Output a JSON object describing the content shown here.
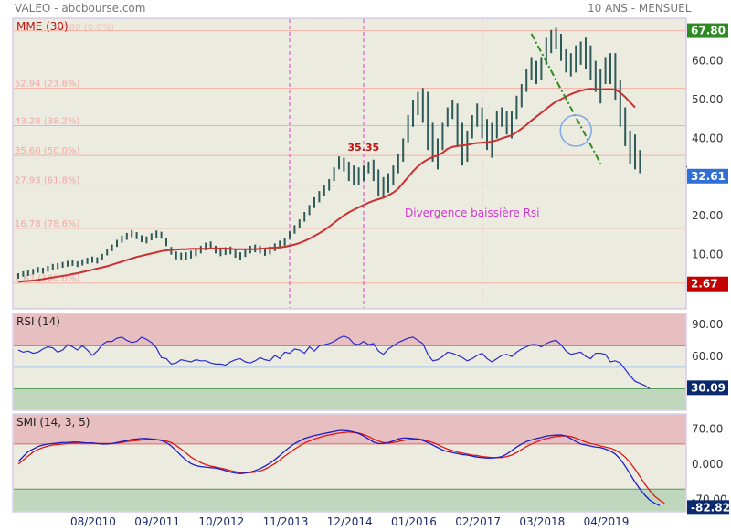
{
  "header": {
    "left_title": "VALEO - abcbourse.com",
    "right_title": "10 ANS - MENSUEL"
  },
  "colors": {
    "panel_bg": "#ebebdf",
    "price_bar": "#2f5a5a",
    "mme_line": "#c83232",
    "rsi_line": "#2a2ad0",
    "smi_main": "#1c1cc8",
    "smi_signal": "#e01818",
    "overbought_zone": "#e8bfc0",
    "oversold_zone": "#bfd8bd",
    "fib_line": "#f5b2a2",
    "fib_label": "#f3a7a7",
    "vline": "#e040c0",
    "trend_line": "#2e8b22",
    "badge_green": "#2e8b22",
    "badge_blue": "#2f6fd6",
    "badge_red": "#c40000",
    "badge_navy": "#0b2a6e"
  },
  "x_axis": {
    "labels": [
      "08/2010",
      "09/2011",
      "10/2012",
      "11/2013",
      "12/2014",
      "01/2016",
      "02/2017",
      "03/2018",
      "04/2019"
    ]
  },
  "chart_data": [
    {
      "type": "ohlc",
      "name": "price",
      "title": "MME (30)",
      "x_start": "2009-05",
      "interval": "month",
      "y_ticks": [
        "60.00",
        "50.00",
        "40.00",
        "30.00",
        "20.00",
        "10.00"
      ],
      "ylim": [
        -4,
        71
      ],
      "grid": true,
      "close": [
        4.5,
        5.0,
        5.2,
        5.6,
        6.0,
        5.8,
        6.3,
        6.8,
        7.0,
        7.3,
        7.6,
        7.8,
        7.5,
        7.9,
        8.3,
        8.6,
        8.4,
        9.2,
        10.5,
        11.6,
        12.8,
        13.9,
        14.6,
        15.3,
        14.8,
        14.0,
        13.7,
        14.5,
        15.2,
        14.9,
        13.2,
        11.0,
        9.8,
        9.5,
        9.6,
        10.0,
        10.6,
        11.3,
        12.1,
        12.4,
        11.3,
        10.6,
        10.9,
        11.1,
        10.2,
        9.6,
        10.4,
        11.3,
        11.6,
        11.3,
        10.7,
        11.1,
        11.9,
        12.6,
        13.3,
        15.0,
        16.4,
        17.9,
        19.7,
        21.5,
        23.4,
        24.9,
        26.4,
        28.0,
        30.5,
        33.2,
        34.6,
        31.5,
        30.0,
        29.5,
        31.0,
        32.5,
        33.0,
        29.0,
        26.5,
        28.0,
        30.0,
        33.0,
        36.0,
        42.0,
        45.0,
        48.0,
        51.0,
        44.0,
        38.0,
        34.0,
        40.0,
        45.0,
        48.0,
        46.0,
        38.0,
        36.0,
        42.0,
        46.0,
        44.0,
        40.0,
        38.0,
        44.0,
        45.0,
        44.0,
        42.0,
        48.0,
        50.0,
        55.0,
        58.0,
        56.0,
        58.0,
        62.0,
        65.0,
        67.0,
        63.0,
        60.0,
        58.0,
        60.0,
        62.0,
        62.0,
        58.0,
        55.0,
        52.0,
        58.0,
        60.0,
        55.0,
        48.0,
        42.0,
        37.0,
        36.0,
        32.6
      ],
      "high": [
        5.2,
        5.7,
        5.9,
        6.3,
        6.8,
        6.6,
        7.1,
        7.6,
        7.8,
        8.1,
        8.4,
        8.6,
        8.3,
        8.8,
        9.2,
        9.5,
        9.3,
        10.2,
        11.5,
        12.6,
        13.8,
        14.9,
        15.6,
        16.3,
        15.8,
        15.0,
        14.7,
        15.5,
        16.2,
        15.9,
        14.2,
        12.0,
        10.8,
        10.5,
        10.6,
        11.0,
        11.6,
        12.3,
        13.1,
        13.4,
        12.3,
        11.6,
        11.9,
        12.1,
        11.2,
        10.6,
        11.4,
        12.3,
        12.6,
        12.3,
        11.7,
        12.1,
        12.9,
        13.6,
        14.3,
        16.0,
        17.6,
        19.1,
        21.0,
        22.8,
        24.8,
        26.4,
        27.8,
        29.5,
        32.5,
        35.35,
        35.0,
        34.0,
        33.0,
        32.5,
        33.0,
        34.0,
        34.5,
        32.0,
        30.0,
        31.0,
        33.0,
        36.0,
        40.0,
        46.0,
        50.0,
        52.0,
        53.0,
        52.0,
        44.0,
        40.0,
        44.0,
        48.0,
        50.0,
        49.0,
        44.0,
        42.0,
        46.0,
        49.0,
        48.0,
        45.0,
        44.0,
        47.0,
        48.0,
        47.0,
        47.0,
        51.0,
        54.0,
        58.0,
        61.0,
        60.0,
        61.0,
        66.0,
        68.0,
        68.5,
        67.0,
        63.0,
        62.0,
        64.0,
        65.0,
        66.0,
        64.0,
        60.0,
        58.0,
        61.0,
        62.0,
        62.0,
        55.0,
        48.0,
        42.0,
        41.0,
        37.0
      ],
      "low": [
        3.8,
        4.3,
        4.5,
        4.9,
        5.3,
        5.1,
        5.6,
        6.1,
        6.3,
        6.6,
        6.9,
        7.1,
        6.8,
        7.2,
        7.6,
        7.9,
        7.7,
        8.5,
        9.8,
        10.9,
        12.0,
        13.1,
        13.8,
        14.5,
        14.0,
        13.2,
        12.9,
        13.7,
        14.4,
        14.1,
        12.2,
        10.0,
        8.8,
        8.5,
        8.6,
        9.0,
        9.6,
        10.3,
        11.1,
        11.4,
        10.3,
        9.6,
        9.9,
        10.1,
        9.2,
        8.6,
        9.4,
        10.3,
        10.6,
        10.3,
        9.7,
        10.1,
        10.9,
        11.6,
        12.3,
        14.0,
        15.4,
        16.8,
        18.5,
        20.2,
        22.0,
        23.5,
        25.0,
        26.5,
        29.0,
        32.0,
        31.5,
        29.0,
        28.0,
        28.0,
        29.0,
        31.0,
        29.0,
        25.0,
        24.5,
        26.0,
        28.0,
        31.0,
        34.0,
        39.0,
        43.0,
        46.0,
        44.0,
        37.0,
        34.0,
        32.0,
        37.0,
        43.0,
        45.0,
        38.0,
        33.0,
        34.0,
        40.0,
        43.0,
        40.0,
        37.0,
        35.0,
        40.0,
        43.0,
        41.0,
        40.0,
        45.0,
        48.0,
        52.0,
        55.0,
        54.0,
        55.0,
        59.0,
        62.0,
        63.0,
        60.0,
        57.0,
        56.0,
        57.0,
        59.0,
        58.0,
        55.0,
        52.0,
        49.0,
        54.0,
        54.0,
        50.0,
        43.0,
        38.0,
        33.5,
        32.0,
        31.0
      ],
      "mme": [
        3.0,
        3.1,
        3.2,
        3.3,
        3.5,
        3.7,
        3.9,
        4.1,
        4.3,
        4.5,
        4.7,
        5.0,
        5.2,
        5.5,
        5.8,
        6.1,
        6.4,
        6.7,
        7.0,
        7.4,
        7.8,
        8.2,
        8.6,
        9.0,
        9.4,
        9.7,
        10.0,
        10.3,
        10.6,
        10.9,
        11.1,
        11.2,
        11.3,
        11.4,
        11.4,
        11.5,
        11.5,
        11.5,
        11.5,
        11.6,
        11.6,
        11.6,
        11.6,
        11.5,
        11.4,
        11.4,
        11.4,
        11.4,
        11.4,
        11.5,
        11.6,
        11.7,
        11.8,
        11.9,
        12.0,
        12.3,
        12.6,
        13.0,
        13.5,
        14.1,
        14.8,
        15.5,
        16.3,
        17.2,
        18.2,
        19.2,
        20.1,
        20.9,
        21.6,
        22.2,
        22.8,
        23.4,
        23.9,
        24.3,
        24.7,
        25.3,
        26.0,
        27.0,
        28.5,
        30.0,
        31.5,
        32.8,
        33.8,
        34.6,
        35.2,
        35.6,
        36.3,
        37.3,
        37.8,
        38.0,
        38.2,
        38.3,
        38.6,
        38.8,
        38.9,
        39.0,
        39.2,
        39.5,
        40.0,
        40.4,
        40.8,
        41.6,
        42.5,
        43.5,
        44.6,
        45.6,
        46.6,
        47.6,
        48.6,
        49.5,
        50.1,
        50.8,
        51.4,
        51.9,
        52.3,
        52.6,
        52.8,
        52.7,
        52.6,
        52.7,
        52.7,
        52.6,
        51.8,
        50.7,
        49.3,
        48.0
      ],
      "fibonacci": [
        {
          "value": 67.8,
          "label": "67.80 (0.0%)"
        },
        {
          "value": 52.94,
          "label": "52.94 (23.6%)"
        },
        {
          "value": 43.28,
          "label": "43.28 (38.2%)"
        },
        {
          "value": 35.6,
          "label": "35.60 (50.0%)"
        },
        {
          "value": 27.93,
          "label": "27.93 (61.8%)"
        },
        {
          "value": 16.78,
          "label": "16.78 (78.6%)"
        },
        {
          "value": 2.67,
          "label": "2.67 (100.0%)"
        }
      ],
      "annotations": {
        "peak_label": "35.35",
        "divergence_text": "Divergence baissière Rsi",
        "vertical_lines_at": [
          "2013-12",
          "2015-03",
          "2017-03"
        ],
        "trendline_from": {
          "date": "2018-01",
          "value": 67.0
        },
        "trendline_to": {
          "date": "2019-03",
          "value": 33.5
        },
        "circle_at": {
          "date": "2018-10",
          "value": 42.0
        }
      },
      "badges": {
        "top": "67.80",
        "current": "32.61",
        "bottom": "2.67"
      }
    },
    {
      "type": "line",
      "name": "rsi",
      "title": "RSI (14)",
      "ylim": [
        10,
        100
      ],
      "y_ticks": [
        "90.00",
        "60.00"
      ],
      "zones": {
        "overbought": 70,
        "oversold": 30
      },
      "reference_line": 50,
      "values": [
        66,
        64,
        65,
        63,
        64,
        67,
        69,
        68,
        64,
        66,
        71,
        69,
        66,
        70,
        66,
        61,
        65,
        71,
        74,
        74,
        77,
        78,
        75,
        73,
        74,
        78,
        76,
        73,
        68,
        59,
        58,
        53,
        54,
        57,
        56,
        55,
        57,
        56,
        56,
        54,
        53,
        53,
        52,
        55,
        57,
        58,
        55,
        54,
        56,
        59,
        57,
        56,
        61,
        58,
        64,
        63,
        67,
        66,
        63,
        69,
        65,
        70,
        71,
        72,
        74,
        77,
        79,
        77,
        72,
        71,
        74,
        71,
        72,
        65,
        62,
        67,
        70,
        73,
        75,
        77,
        78,
        75,
        72,
        62,
        56,
        57,
        60,
        64,
        63,
        61,
        59,
        56,
        58,
        61,
        63,
        58,
        55,
        58,
        61,
        62,
        60,
        64,
        67,
        69,
        71,
        71,
        69,
        72,
        74,
        75,
        71,
        65,
        62,
        63,
        64,
        60,
        58,
        63,
        63,
        62,
        55,
        56,
        54,
        48,
        42,
        37,
        35,
        33,
        30
      ],
      "badge": "30.09"
    },
    {
      "type": "line",
      "name": "smi",
      "title": "SMI (14, 3, 5)",
      "ylim": [
        -95,
        100
      ],
      "y_ticks": [
        "70.00",
        "0.000",
        "-70.00"
      ],
      "zones": {
        "overbought": 40,
        "oversold": -50
      },
      "series": [
        {
          "values": [
            5,
            15,
            25,
            30,
            35,
            38,
            40,
            41,
            42,
            43,
            43,
            44,
            44,
            43,
            42,
            42,
            41,
            40,
            40,
            41,
            43,
            45,
            47,
            49,
            50,
            51,
            51,
            50,
            49,
            47,
            43,
            36,
            27,
            17,
            8,
            1,
            -3,
            -5,
            -6,
            -7,
            -8,
            -10,
            -13,
            -16,
            -18,
            -19,
            -18,
            -16,
            -13,
            -9,
            -4,
            2,
            9,
            17,
            26,
            34,
            41,
            46,
            51,
            54,
            57,
            59,
            61,
            63,
            65,
            67,
            67,
            66,
            64,
            61,
            56,
            50,
            44,
            41,
            41,
            43,
            46,
            50,
            52,
            52,
            51,
            50,
            47,
            43,
            38,
            33,
            28,
            25,
            23,
            21,
            19,
            18,
            16,
            14,
            13,
            12,
            12,
            13,
            15,
            20,
            27,
            34,
            40,
            45,
            48,
            51,
            53,
            56,
            57,
            58,
            58,
            56,
            51,
            45,
            40,
            38,
            36,
            34,
            33,
            30,
            26,
            20,
            10,
            -4,
            -20,
            -36,
            -50,
            -62,
            -72,
            -78,
            -82.82
          ]
        },
        {
          "values": [
            0,
            8,
            16,
            24,
            29,
            33,
            36,
            38,
            39,
            40,
            41,
            42,
            42,
            42,
            42,
            42,
            41,
            41,
            41,
            41,
            42,
            43,
            45,
            46,
            47,
            48,
            49,
            49,
            49,
            48,
            46,
            43,
            37,
            30,
            22,
            14,
            8,
            3,
            -1,
            -4,
            -6,
            -8,
            -10,
            -13,
            -15,
            -17,
            -17,
            -17,
            -16,
            -14,
            -10,
            -5,
            1,
            8,
            16,
            23,
            30,
            36,
            42,
            46,
            50,
            53,
            56,
            58,
            60,
            62,
            63,
            64,
            63,
            62,
            59,
            55,
            50,
            46,
            43,
            42,
            43,
            45,
            47,
            49,
            50,
            50,
            49,
            46,
            43,
            39,
            34,
            30,
            27,
            24,
            22,
            20,
            18,
            17,
            15,
            14,
            13,
            13,
            13,
            15,
            18,
            23,
            29,
            35,
            40,
            44,
            48,
            51,
            53,
            55,
            56,
            56,
            55,
            52,
            48,
            44,
            41,
            39,
            36,
            34,
            32,
            28,
            22,
            14,
            3,
            -10,
            -25,
            -40,
            -53,
            -64,
            -72,
            -78
          ]
        }
      ],
      "badge": "-82.82"
    }
  ]
}
